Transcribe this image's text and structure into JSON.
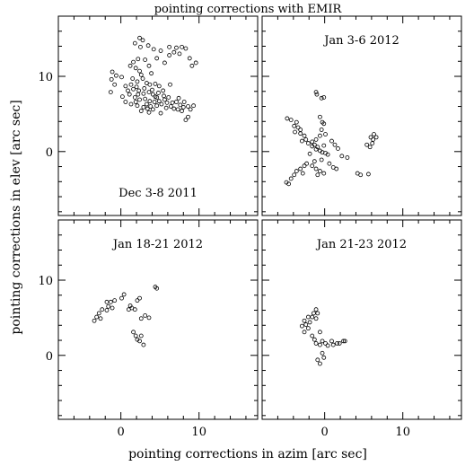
{
  "chart_data": [
    {
      "type": "scatter",
      "title": "pointing corrections with EMIR",
      "xlabel": "pointing corrections in azim [arc sec]",
      "ylabel": "pointing corrections in elev [arc sec]",
      "xlim": [
        -8,
        17.5
      ],
      "ylim": [
        -8.5,
        18
      ],
      "x_ticks": [
        0,
        10
      ],
      "y_ticks": [
        0,
        10
      ],
      "minor_tick_step": 2,
      "grid": false,
      "panels": [
        {
          "id": "dec-2011",
          "label": "Dec 3-8 2011",
          "label_position": "bottom-center",
          "points": [
            [
              2.4,
              15.1
            ],
            [
              2.8,
              14.8
            ],
            [
              1.8,
              14.4
            ],
            [
              3.5,
              14.1
            ],
            [
              4.2,
              13.6
            ],
            [
              5.1,
              13.4
            ],
            [
              2.5,
              13.9
            ],
            [
              6.2,
              13.9
            ],
            [
              7.1,
              13.8
            ],
            [
              7.8,
              13.9
            ],
            [
              8.3,
              13.7
            ],
            [
              6.8,
              13.2
            ],
            [
              7.5,
              13.0
            ],
            [
              4.6,
              12.4
            ],
            [
              9.6,
              11.8
            ],
            [
              9.1,
              11.4
            ],
            [
              3.1,
              12.2
            ],
            [
              2.2,
              12.3
            ],
            [
              1.6,
              11.9
            ],
            [
              1.2,
              11.4
            ],
            [
              1.9,
              11.1
            ],
            [
              2.4,
              10.7
            ],
            [
              3.6,
              11.4
            ],
            [
              5.6,
              11.8
            ],
            [
              6.2,
              12.8
            ],
            [
              8.8,
              12.4
            ],
            [
              -1.1,
              10.6
            ],
            [
              -0.6,
              10.1
            ],
            [
              0.1,
              9.9
            ],
            [
              -1.2,
              9.6
            ],
            [
              -0.8,
              8.9
            ],
            [
              -1.3,
              7.9
            ],
            [
              0.6,
              8.7
            ],
            [
              1.3,
              8.9
            ],
            [
              2.1,
              9.3
            ],
            [
              2.8,
              9.7
            ],
            [
              3.3,
              9.1
            ],
            [
              3.7,
              8.9
            ],
            [
              4.4,
              9.0
            ],
            [
              4.9,
              8.7
            ],
            [
              5.4,
              8.1
            ],
            [
              6.3,
              8.9
            ],
            [
              1.6,
              8.3
            ],
            [
              2.3,
              8.1
            ],
            [
              2.9,
              7.7
            ],
            [
              3.6,
              7.9
            ],
            [
              4.1,
              7.6
            ],
            [
              4.6,
              7.2
            ],
            [
              5.6,
              6.9
            ],
            [
              6.1,
              7.2
            ],
            [
              1.1,
              7.6
            ],
            [
              1.8,
              7.2
            ],
            [
              2.4,
              6.9
            ],
            [
              3.1,
              7.0
            ],
            [
              3.7,
              6.7
            ],
            [
              4.3,
              6.6
            ],
            [
              5.2,
              6.3
            ],
            [
              6.6,
              6.5
            ],
            [
              7.1,
              6.6
            ],
            [
              7.6,
              6.2
            ],
            [
              8.1,
              6.6
            ],
            [
              8.6,
              6.0
            ],
            [
              0.6,
              6.6
            ],
            [
              1.3,
              6.3
            ],
            [
              2.1,
              6.1
            ],
            [
              2.9,
              5.9
            ],
            [
              3.4,
              5.7
            ],
            [
              4.6,
              6.1
            ],
            [
              5.8,
              5.8
            ],
            [
              6.8,
              5.7
            ],
            [
              7.8,
              5.4
            ],
            [
              8.9,
              5.6
            ],
            [
              2.6,
              5.4
            ],
            [
              3.6,
              5.2
            ],
            [
              4.1,
              5.6
            ],
            [
              5.1,
              5.1
            ],
            [
              7.3,
              5.6
            ],
            [
              8.6,
              4.6
            ],
            [
              8.3,
              4.2
            ],
            [
              9.3,
              6.1
            ],
            [
              2.0,
              8.6
            ],
            [
              3.0,
              8.4
            ],
            [
              4.0,
              8.2
            ],
            [
              4.8,
              7.8
            ],
            [
              5.5,
              7.4
            ],
            [
              6.4,
              6.0
            ],
            [
              1.5,
              9.7
            ],
            [
              2.6,
              10.2
            ],
            [
              3.9,
              10.4
            ],
            [
              0.2,
              7.3
            ],
            [
              0.9,
              8.1
            ],
            [
              1.9,
              6.6
            ],
            [
              3.3,
              6.3
            ],
            [
              4.9,
              6.7
            ],
            [
              5.9,
              6.5
            ],
            [
              7.4,
              7.1
            ],
            [
              8.0,
              5.9
            ],
            [
              2.2,
              7.6
            ],
            [
              3.8,
              6.0
            ],
            [
              4.4,
              7.3
            ]
          ]
        },
        {
          "id": "jan-3-6-2012",
          "label": "Jan 3-6 2012",
          "label_position": "top-center",
          "points": [
            [
              -1.1,
              7.9
            ],
            [
              -1.0,
              7.6
            ],
            [
              -0.4,
              7.1
            ],
            [
              -0.1,
              7.2
            ],
            [
              -0.6,
              4.6
            ],
            [
              -0.3,
              3.9
            ],
            [
              -0.1,
              3.7
            ],
            [
              -4.8,
              4.4
            ],
            [
              -4.3,
              4.2
            ],
            [
              -3.6,
              3.9
            ],
            [
              -3.9,
              3.4
            ],
            [
              -3.4,
              3.2
            ],
            [
              -3.1,
              2.9
            ],
            [
              -3.8,
              2.6
            ],
            [
              -3.1,
              2.4
            ],
            [
              -2.6,
              2.1
            ],
            [
              -2.9,
              1.4
            ],
            [
              -2.4,
              1.6
            ],
            [
              -2.1,
              1.1
            ],
            [
              -1.6,
              1.3
            ],
            [
              -1.3,
              0.9
            ],
            [
              -0.9,
              0.6
            ],
            [
              -1.6,
              0.7
            ],
            [
              -1.1,
              0.3
            ],
            [
              -0.6,
              0.1
            ],
            [
              -0.3,
              -0.1
            ],
            [
              0.1,
              -0.2
            ],
            [
              0.4,
              -0.4
            ],
            [
              -0.1,
              0.8
            ],
            [
              0.9,
              1.4
            ],
            [
              1.3,
              0.9
            ],
            [
              1.7,
              0.4
            ],
            [
              2.2,
              -0.6
            ],
            [
              -1.1,
              1.6
            ],
            [
              -0.6,
              2.1
            ],
            [
              -0.4,
              2.9
            ],
            [
              0.1,
              2.3
            ],
            [
              -2.3,
              -1.6
            ],
            [
              -2.6,
              -1.9
            ],
            [
              -3.1,
              -2.3
            ],
            [
              -3.6,
              -2.6
            ],
            [
              -3.9,
              -3.1
            ],
            [
              -4.3,
              -3.6
            ],
            [
              -4.9,
              -4.1
            ],
            [
              -4.6,
              -4.3
            ],
            [
              -1.6,
              -1.9
            ],
            [
              -1.1,
              -2.3
            ],
            [
              -0.6,
              -2.6
            ],
            [
              -0.1,
              -2.9
            ],
            [
              -1.3,
              -1.3
            ],
            [
              -0.4,
              -1.1
            ],
            [
              0.6,
              -1.6
            ],
            [
              1.1,
              -2.1
            ],
            [
              1.5,
              -2.3
            ],
            [
              2.9,
              -0.8
            ],
            [
              4.2,
              -2.9
            ],
            [
              4.6,
              -3.1
            ],
            [
              5.6,
              -3.0
            ],
            [
              5.9,
              1.9
            ],
            [
              6.2,
              1.6
            ],
            [
              6.1,
              1.1
            ],
            [
              5.8,
              0.6
            ],
            [
              6.6,
              1.9
            ],
            [
              6.3,
              2.3
            ],
            [
              5.4,
              0.9
            ],
            [
              -1.9,
              -0.3
            ],
            [
              -2.8,
              -2.9
            ],
            [
              -0.9,
              -3.1
            ]
          ]
        },
        {
          "id": "jan-18-21-2012",
          "label": "Jan 18-21 2012",
          "label_position": "top-center",
          "points": [
            [
              -3.4,
              4.6
            ],
            [
              -3.1,
              5.1
            ],
            [
              -2.6,
              4.9
            ],
            [
              -2.8,
              5.6
            ],
            [
              -2.4,
              6.1
            ],
            [
              -1.8,
              6.0
            ],
            [
              -1.6,
              6.5
            ],
            [
              -1.1,
              6.3
            ],
            [
              -0.8,
              7.3
            ],
            [
              -1.3,
              7.1
            ],
            [
              -1.8,
              7.1
            ],
            [
              0.1,
              7.6
            ],
            [
              0.4,
              8.1
            ],
            [
              1.0,
              6.1
            ],
            [
              1.4,
              6.3
            ],
            [
              1.8,
              6.1
            ],
            [
              2.1,
              7.3
            ],
            [
              2.4,
              7.6
            ],
            [
              1.6,
              3.1
            ],
            [
              1.9,
              2.6
            ],
            [
              2.1,
              2.1
            ],
            [
              2.4,
              1.9
            ],
            [
              2.6,
              2.6
            ],
            [
              2.9,
              1.4
            ],
            [
              2.6,
              4.9
            ],
            [
              3.1,
              5.3
            ],
            [
              3.6,
              5.0
            ],
            [
              4.6,
              8.9
            ],
            [
              4.4,
              9.1
            ],
            [
              1.2,
              6.6
            ]
          ]
        },
        {
          "id": "jan-21-23-2012",
          "label": "Jan 21-23 2012",
          "label_position": "top-center",
          "points": [
            [
              -1.1,
              6.1
            ],
            [
              -1.4,
              5.6
            ],
            [
              -0.9,
              5.6
            ],
            [
              -1.6,
              5.1
            ],
            [
              -1.1,
              4.9
            ],
            [
              -2.1,
              5.1
            ],
            [
              -2.6,
              4.6
            ],
            [
              -2.4,
              4.1
            ],
            [
              -2.9,
              3.9
            ],
            [
              -2.6,
              3.1
            ],
            [
              -2.1,
              3.6
            ],
            [
              -1.6,
              2.6
            ],
            [
              -1.3,
              2.1
            ],
            [
              -1.1,
              1.6
            ],
            [
              -0.6,
              1.4
            ],
            [
              -0.3,
              1.9
            ],
            [
              0.1,
              1.6
            ],
            [
              0.4,
              1.3
            ],
            [
              0.9,
              1.9
            ],
            [
              1.1,
              1.4
            ],
            [
              1.6,
              1.6
            ],
            [
              1.9,
              1.6
            ],
            [
              2.4,
              1.9
            ],
            [
              2.6,
              1.9
            ],
            [
              -0.9,
              -0.6
            ],
            [
              -0.6,
              -1.1
            ],
            [
              -0.1,
              -0.3
            ],
            [
              -0.3,
              0.3
            ],
            [
              -0.6,
              3.1
            ],
            [
              -1.9,
              4.4
            ]
          ]
        }
      ]
    }
  ]
}
